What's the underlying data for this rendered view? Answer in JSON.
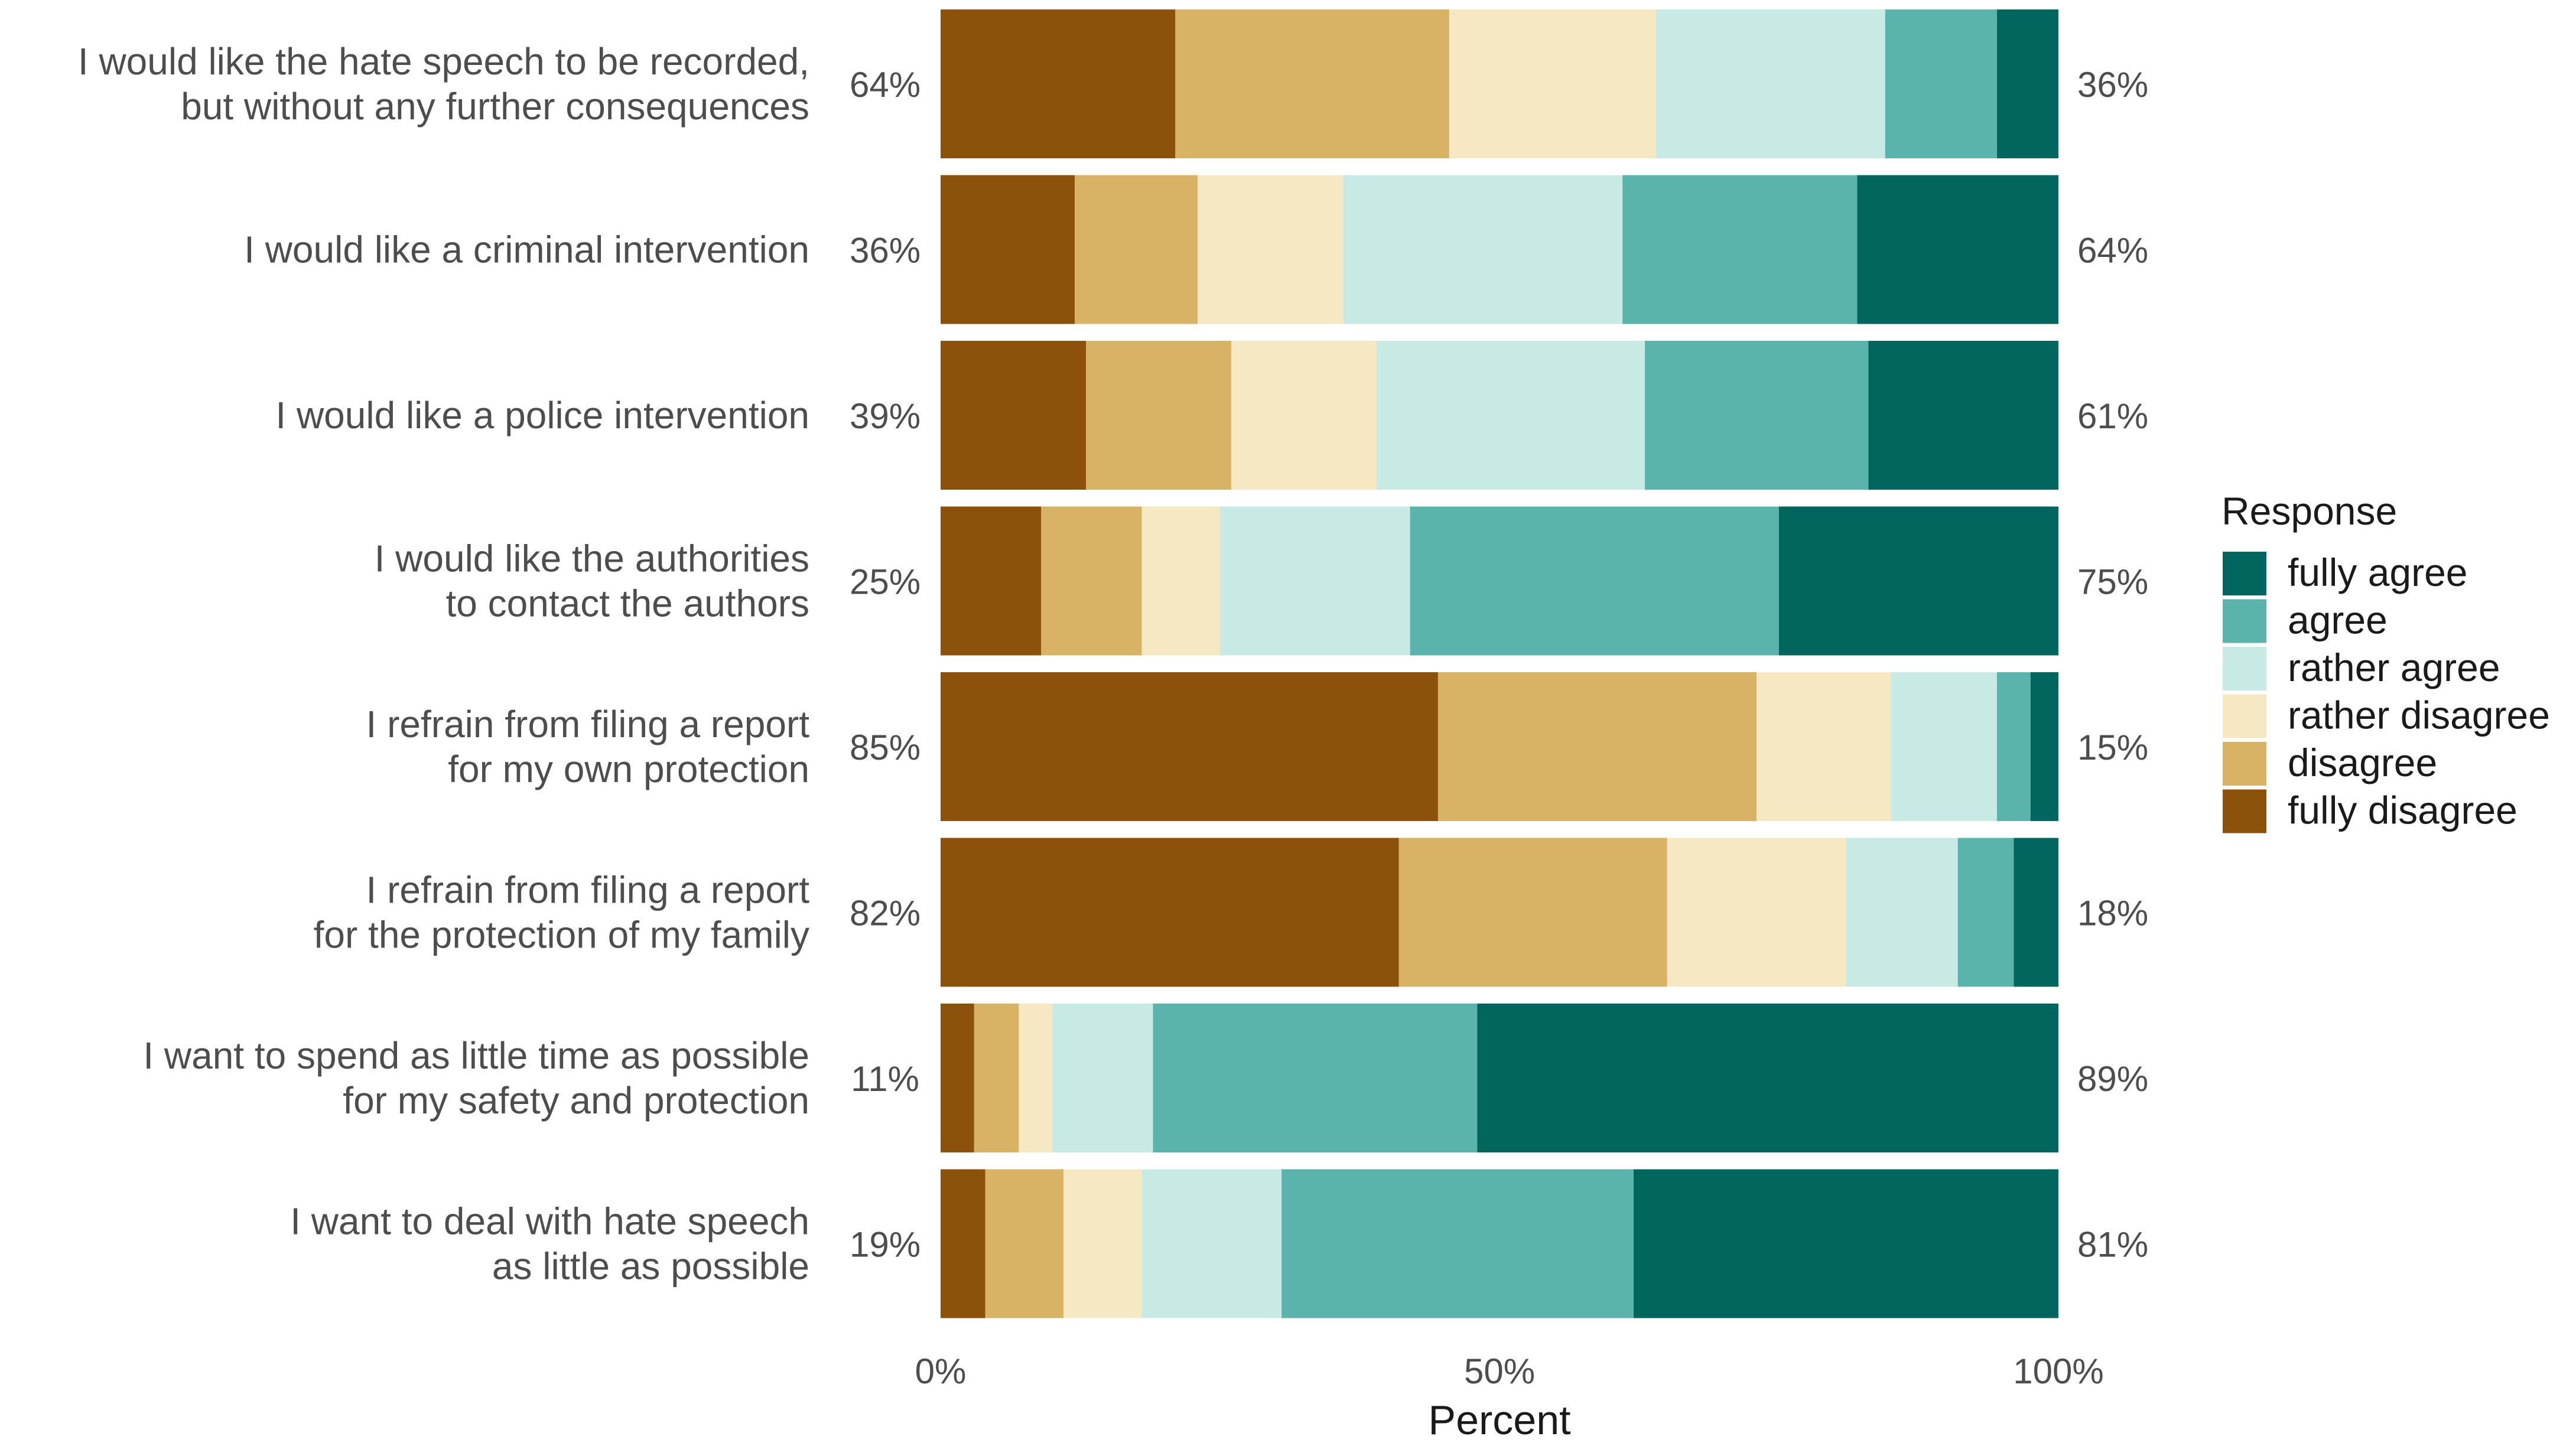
{
  "chart_data": {
    "type": "bar",
    "orientation": "horizontal-stacked",
    "xlabel": "Percent",
    "ylabel": "",
    "xlim": [
      0,
      100
    ],
    "x_ticks": [
      "0%",
      "50%",
      "100%"
    ],
    "legend_title": "Response",
    "legend_position": "right",
    "series": [
      {
        "name": "fully disagree",
        "color": "#8c510a",
        "values": [
          21,
          12,
          13,
          9,
          44.5,
          41,
          3,
          4
        ]
      },
      {
        "name": "disagree",
        "color": "#d8b365",
        "values": [
          24.5,
          11,
          13,
          9,
          28.5,
          24,
          4,
          7
        ]
      },
      {
        "name": "rather disagree",
        "color": "#f6e8c3",
        "values": [
          18.5,
          13,
          13,
          7,
          12,
          16,
          3,
          7
        ]
      },
      {
        "name": "rather agree",
        "color": "#c7eae5",
        "values": [
          20.5,
          25,
          24,
          17,
          9.5,
          10,
          9,
          12.5
        ]
      },
      {
        "name": "agree",
        "color": "#5ab4ac",
        "values": [
          10,
          21,
          20,
          33,
          3,
          5,
          29,
          31.5
        ]
      },
      {
        "name": "fully agree",
        "color": "#01665e",
        "values": [
          5.5,
          18,
          17,
          25,
          2.5,
          4,
          52,
          38
        ]
      }
    ],
    "legend_order": [
      "fully agree",
      "agree",
      "rather agree",
      "rather disagree",
      "disagree",
      "fully disagree"
    ],
    "categories": [
      {
        "lines": [
          "I would like the hate speech to be recorded,",
          "but without any further consequences"
        ],
        "left_pct": "64%",
        "right_pct": "36%"
      },
      {
        "lines": [
          "I would like a criminal intervention"
        ],
        "left_pct": "36%",
        "right_pct": "64%"
      },
      {
        "lines": [
          "I would like a police intervention"
        ],
        "left_pct": "39%",
        "right_pct": "61%"
      },
      {
        "lines": [
          "I would like the authorities",
          "to contact the authors"
        ],
        "left_pct": "25%",
        "right_pct": "75%"
      },
      {
        "lines": [
          "I refrain from filing a report",
          "for my own protection"
        ],
        "left_pct": "85%",
        "right_pct": "15%"
      },
      {
        "lines": [
          "I refrain from filing a report",
          "for the protection of my family"
        ],
        "left_pct": "82%",
        "right_pct": "18%"
      },
      {
        "lines": [
          "I want to spend as little time as possible",
          "for my safety and protection"
        ],
        "left_pct": "11%",
        "right_pct": "89%"
      },
      {
        "lines": [
          "I want to deal with hate speech",
          "as little as possible"
        ],
        "left_pct": "19%",
        "right_pct": "81%"
      }
    ]
  }
}
